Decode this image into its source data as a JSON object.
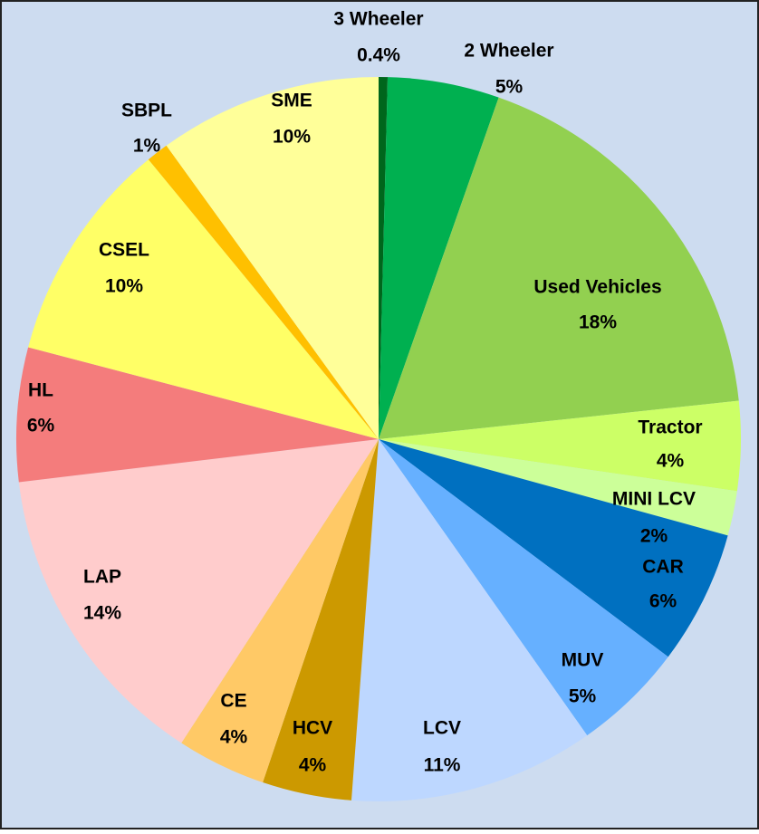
{
  "chart_data": {
    "type": "pie",
    "categories": [
      "3 Wheeler",
      "2 Wheeler",
      "Used Vehicles",
      "Tractor",
      "MINI LCV",
      "CAR",
      "MUV",
      "LCV",
      "HCV",
      "CE",
      "LAP",
      "HL",
      "CSEL",
      "SBPL",
      "SME"
    ],
    "values": [
      0.4,
      5,
      18,
      4,
      2,
      6,
      5,
      11,
      4,
      4,
      14,
      6,
      10,
      1,
      10
    ],
    "value_labels": [
      "0.4%",
      "5%",
      "18%",
      "4%",
      "2%",
      "6%",
      "5%",
      "11%",
      "4%",
      "4%",
      "14%",
      "6%",
      "10%",
      "1%",
      "10%"
    ],
    "colors": [
      "#00661c",
      "#00b050",
      "#92d050",
      "#ccff66",
      "#ccff99",
      "#0070c0",
      "#66b0ff",
      "#bdd7ff",
      "#cc9900",
      "#ffc966",
      "#ffcccc",
      "#f47c7c",
      "#ffff66",
      "#ffc000",
      "#ffff99"
    ]
  }
}
